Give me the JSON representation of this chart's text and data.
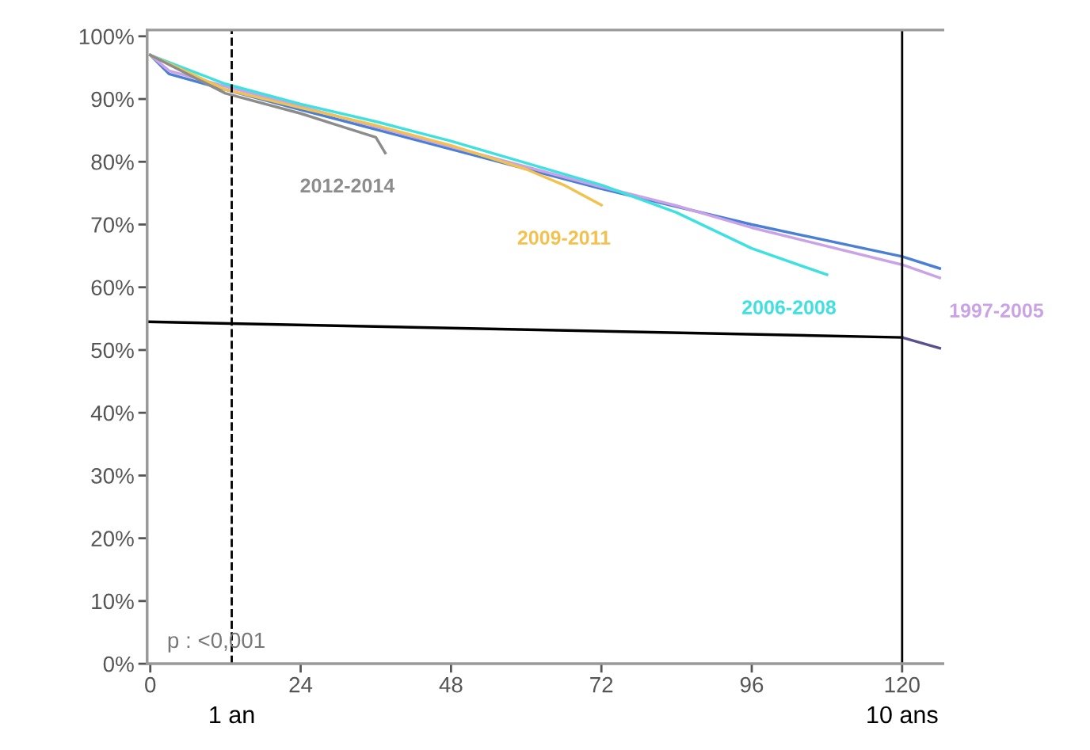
{
  "chart_data": {
    "type": "line",
    "xlim": [
      -0.5,
      126.5
    ],
    "ylim": [
      0,
      101
    ],
    "xticks": [
      0,
      24,
      48,
      72,
      96,
      120
    ],
    "yticks": [
      {
        "value": 0,
        "label": "0%"
      },
      {
        "value": 10,
        "label": "10%"
      },
      {
        "value": 20,
        "label": "20%"
      },
      {
        "value": 30,
        "label": "30%"
      },
      {
        "value": 40,
        "label": "40%"
      },
      {
        "value": 50,
        "label": "50%"
      },
      {
        "value": 60,
        "label": "60%"
      },
      {
        "value": 70,
        "label": "70%"
      },
      {
        "value": 80,
        "label": "80%"
      },
      {
        "value": 90,
        "label": "90%"
      },
      {
        "value": 100,
        "label": "100%"
      }
    ],
    "grid": false,
    "legend": false,
    "marker": "none",
    "line_style": "solid",
    "series": [
      {
        "color": "#4a7fd8",
        "x": [
          0,
          3,
          12,
          24,
          48,
          72,
          96,
          120,
          126
        ],
        "values": [
          97,
          94,
          91.5,
          88.3,
          82,
          75.7,
          70,
          64.9,
          63
        ]
      },
      {
        "name": "1997-2005",
        "color": "#c9a3e6",
        "x": [
          0,
          3,
          12,
          24,
          48,
          72,
          84,
          96,
          120,
          126
        ],
        "values": [
          97,
          94.5,
          92,
          88.8,
          82.4,
          76,
          73,
          69.5,
          63.6,
          61.5
        ]
      },
      {
        "name": "2006-2008",
        "color": "#3ee0e0",
        "x": [
          0,
          12,
          24,
          36,
          48,
          60,
          72,
          84,
          96,
          108
        ],
        "values": [
          97,
          92.4,
          89.2,
          86.4,
          83.3,
          79.8,
          76.3,
          71.9,
          66.2,
          62
        ]
      },
      {
        "name": "2009-2011",
        "color": "#f2c14e",
        "x": [
          0,
          12,
          24,
          36,
          48,
          60,
          66,
          72
        ],
        "values": [
          97,
          91.5,
          88.6,
          85.8,
          82.6,
          78.8,
          76.3,
          73.1
        ]
      },
      {
        "name": "2012-2014",
        "color": "#8c8c8c",
        "x": [
          0,
          12,
          24,
          30,
          36,
          37.5
        ],
        "values": [
          97,
          90.9,
          87.7,
          85.8,
          83.9,
          81.4
        ]
      },
      {
        "color": "#000000",
        "x": [
          -0.5,
          120
        ],
        "values": [
          54.5,
          52
        ]
      },
      {
        "color": "#5a4f8f",
        "x": [
          120,
          126
        ],
        "values": [
          52,
          50.3
        ]
      }
    ],
    "ref_lines": [
      {
        "axis": "x",
        "value": 13,
        "label": "1 an",
        "color": "#000000",
        "line_style": "dashed"
      },
      {
        "axis": "x",
        "value": 120,
        "label": "10 ans",
        "color": "#000000",
        "line_style": "solid"
      }
    ],
    "annotations": [
      "p : <0,001"
    ]
  }
}
